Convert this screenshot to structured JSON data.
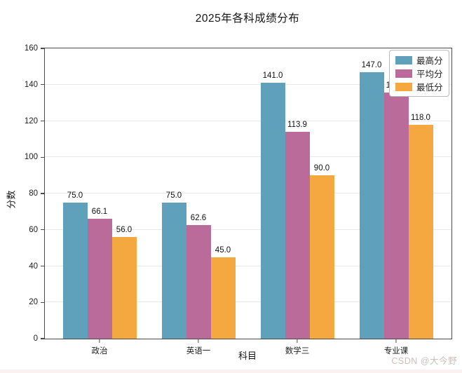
{
  "title": "2025年各科成绩分布",
  "watermark": "CSDN @大今野",
  "chart_data": {
    "type": "bar",
    "title": "2025年各科成绩分布",
    "xlabel": "科目",
    "ylabel": "分数",
    "categories": [
      "政治",
      "英语一",
      "数学三",
      "专业课"
    ],
    "series": [
      {
        "name": "最高分",
        "color": "#5FA1BB",
        "values": [
          75.0,
          75.0,
          141.0,
          147.0
        ]
      },
      {
        "name": "平均分",
        "color": "#BB6B99",
        "values": [
          66.1,
          62.6,
          113.9,
          135.7
        ]
      },
      {
        "name": "最低分",
        "color": "#F4A83F",
        "values": [
          56.0,
          45.0,
          90.0,
          118.0
        ]
      }
    ],
    "ylim": [
      0,
      160
    ],
    "yticks": [
      0,
      20,
      40,
      60,
      80,
      100,
      120,
      140,
      160
    ],
    "grid": true,
    "legend_position": "upper-right",
    "value_label_format": "one-decimal",
    "note": "专业课 平均分 value label is partially hidden behind the legend (only leading digit 1 visible); value estimated from bar height vs gridlines"
  }
}
